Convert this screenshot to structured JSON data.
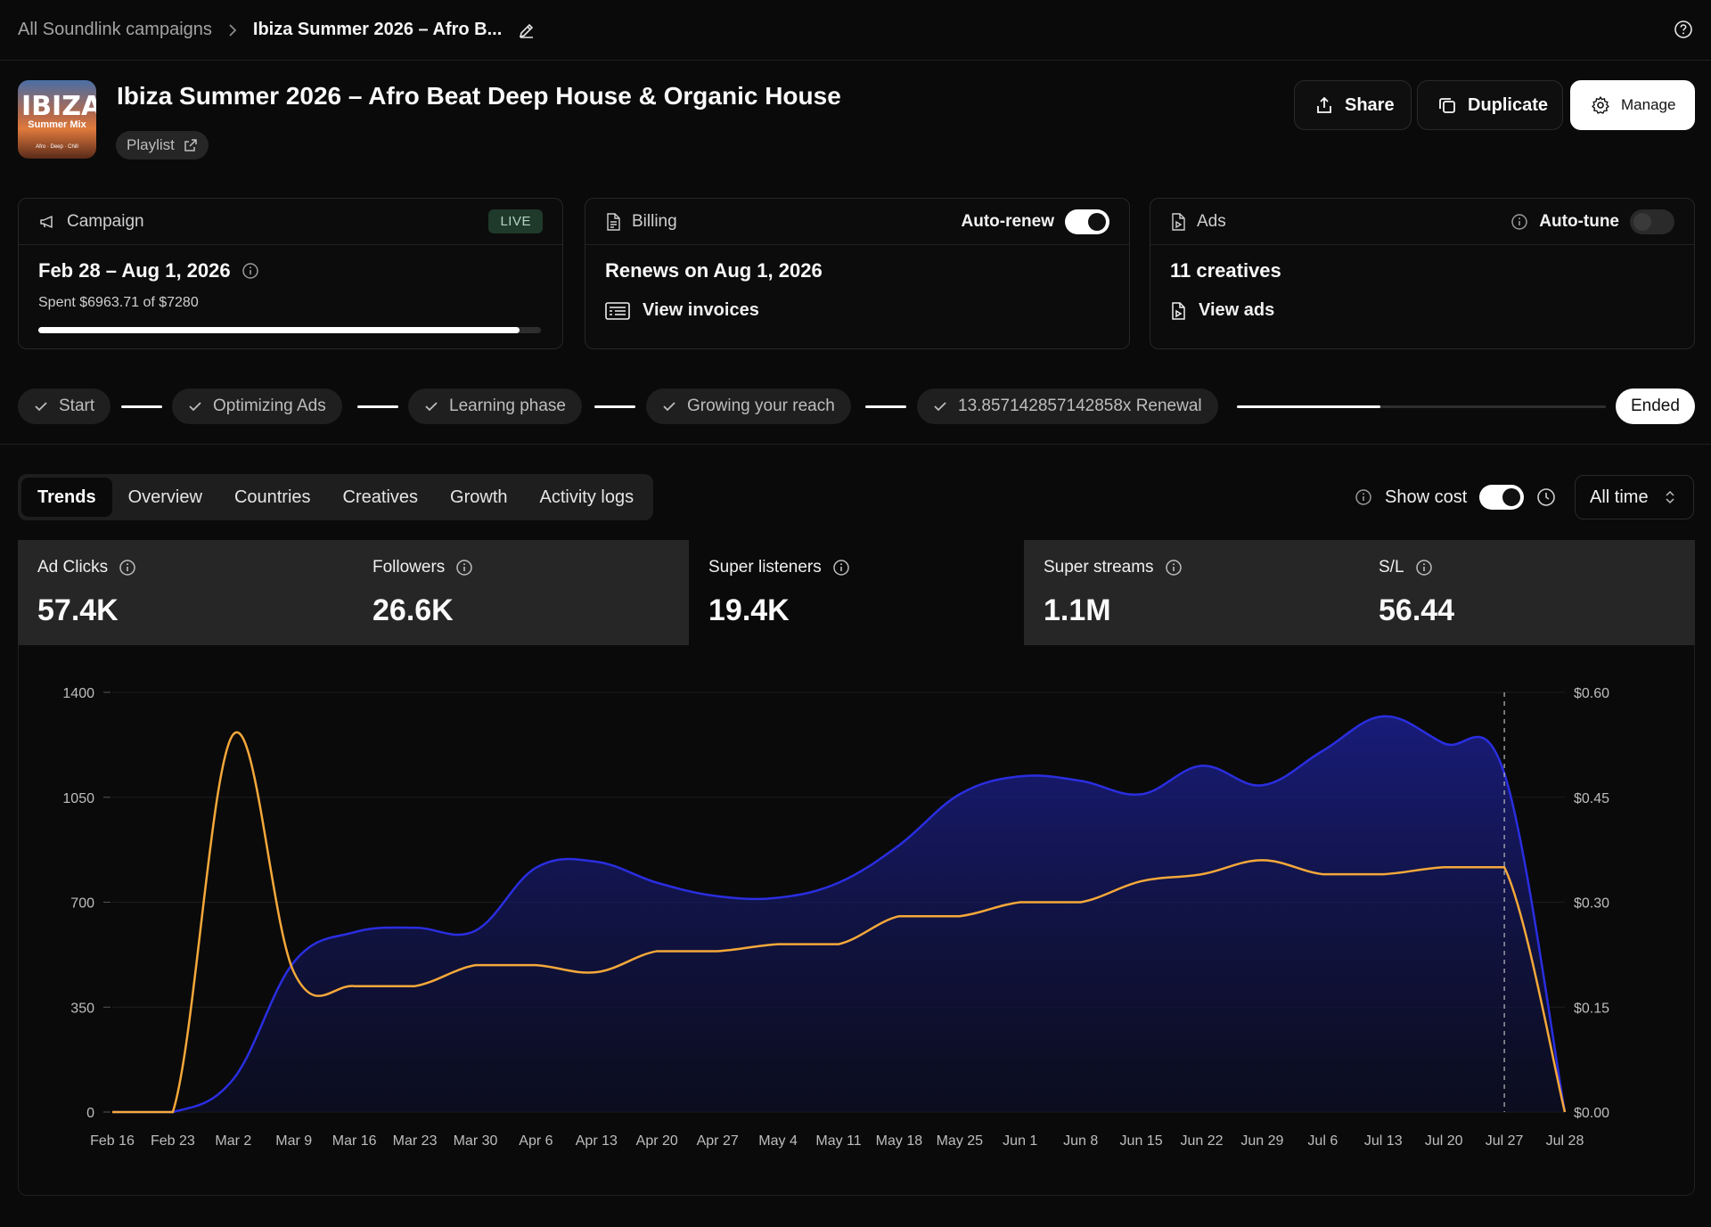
{
  "breadcrumb": {
    "parent": "All Soundlink campaigns",
    "current": "Ibiza Summer 2026 – Afro B..."
  },
  "header": {
    "cover": {
      "title": "IBIZA",
      "subtitle": "Summer Mix",
      "tagline": "Afro · Deep · Chill"
    },
    "title": "Ibiza Summer 2026 – Afro Beat Deep House & Organic House",
    "type_label": "Playlist",
    "buttons": {
      "share": "Share",
      "duplicate": "Duplicate",
      "manage": "Manage"
    }
  },
  "campaign_card": {
    "label": "Campaign",
    "status": "LIVE",
    "dates": "Feb 28 – Aug 1, 2026",
    "spent_text": "Spent $6963.71 of $7280",
    "progress": 0.9566
  },
  "billing_card": {
    "label": "Billing",
    "auto_renew_label": "Auto-renew",
    "auto_renew_on": true,
    "renews_text": "Renews on Aug 1, 2026",
    "invoices_link": "View invoices"
  },
  "ads_card": {
    "label": "Ads",
    "auto_tune_label": "Auto-tune",
    "auto_tune_on": false,
    "creatives_text": "11 creatives",
    "ads_link": "View ads"
  },
  "stepper": {
    "steps": [
      "Start",
      "Optimizing Ads",
      "Learning phase",
      "Growing your reach",
      "13.857142857142858x Renewal"
    ],
    "final": "Ended",
    "final_progress": 0.39
  },
  "tabs": [
    "Trends",
    "Overview",
    "Countries",
    "Creatives",
    "Growth",
    "Activity logs"
  ],
  "active_tab": "Trends",
  "controls": {
    "show_cost_label": "Show cost",
    "show_cost_on": true,
    "time_range": "All time"
  },
  "metrics": [
    {
      "label": "Ad Clicks",
      "value": "57.4K",
      "selected": true
    },
    {
      "label": "Followers",
      "value": "26.6K",
      "selected": true
    },
    {
      "label": "Super listeners",
      "value": "19.4K",
      "selected": false
    },
    {
      "label": "Super streams",
      "value": "1.1M",
      "selected": true
    },
    {
      "label": "S/L",
      "value": "56.44",
      "selected": true
    }
  ],
  "colors": {
    "series_primary": "#2a2ee0",
    "series_cost": "#f5a83a",
    "accent": "#ffffff"
  },
  "chart_data": {
    "type": "line",
    "x": [
      "Feb 16",
      "Feb 23",
      "Mar 2",
      "Mar 9",
      "Mar 16",
      "Mar 23",
      "Mar 30",
      "Apr 6",
      "Apr 13",
      "Apr 20",
      "Apr 27",
      "May 4",
      "May 11",
      "May 18",
      "May 25",
      "Jun 1",
      "Jun 8",
      "Jun 15",
      "Jun 22",
      "Jun 29",
      "Jul 6",
      "Jul 13",
      "Jul 20",
      "Jul 27",
      "Jul 28"
    ],
    "ylim": [
      0,
      1400
    ],
    "y2lim": [
      0,
      0.6
    ],
    "y_ticks": [
      "0",
      "350",
      "700",
      "1050",
      "1400"
    ],
    "y2_ticks": [
      "$0.00",
      "$0.15",
      "$0.30",
      "$0.45",
      "$0.60"
    ],
    "grid": true,
    "marker_x": "Jul 27",
    "series": [
      {
        "axis": "left",
        "fill": true,
        "values": [
          0,
          0,
          110,
          500,
          600,
          615,
          605,
          815,
          835,
          765,
          720,
          715,
          765,
          890,
          1060,
          1120,
          1105,
          1060,
          1155,
          1090,
          1205,
          1320,
          1230,
          1130,
          0
        ]
      },
      {
        "axis": "right",
        "fill": false,
        "values": [
          0,
          0,
          0.54,
          0.2,
          0.18,
          0.18,
          0.21,
          0.21,
          0.2,
          0.23,
          0.23,
          0.24,
          0.24,
          0.28,
          0.28,
          0.3,
          0.3,
          0.33,
          0.34,
          0.36,
          0.34,
          0.34,
          0.35,
          0.35,
          0
        ]
      }
    ]
  }
}
